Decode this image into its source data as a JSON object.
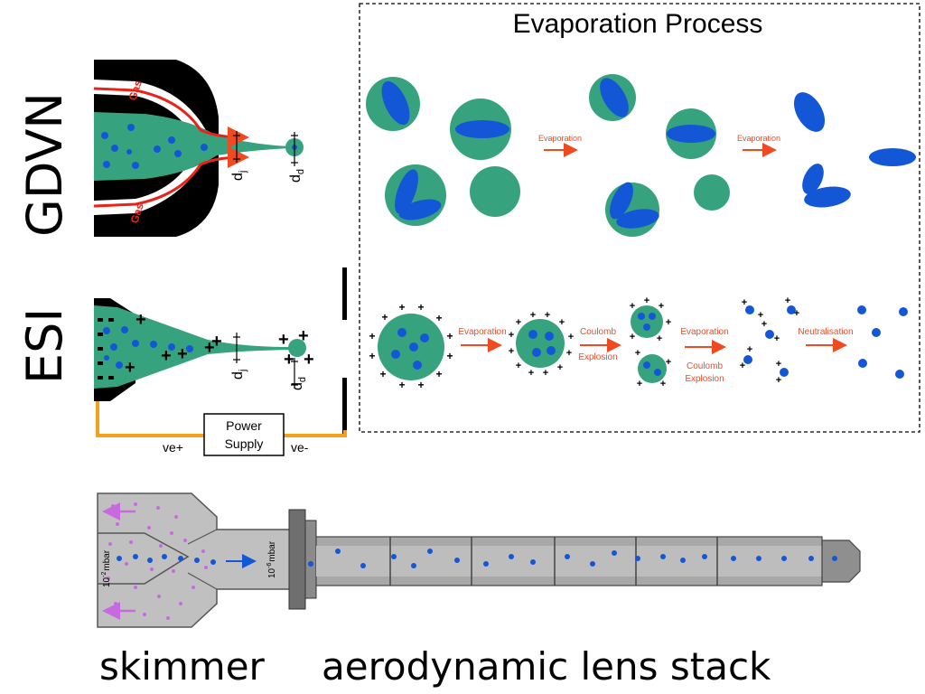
{
  "gdvn": {
    "title": "GDVN",
    "gas_top": "Gas",
    "gas_bottom": "Gas",
    "dj": "d",
    "dj_sub": "j",
    "dd": "d",
    "dd_sub": "d"
  },
  "esi": {
    "title": "ESI",
    "dj": "d",
    "dj_sub": "j",
    "dd": "d",
    "dd_sub": "d",
    "power_line1": "Power",
    "power_line2": "Supply",
    "ve_plus": "ve+",
    "ve_minus": "ve-"
  },
  "evaporation": {
    "title": "Evaporation Process",
    "arrow1": "Evaporation",
    "arrow2": "Evaporation",
    "esi_arrow1": "Evaporation",
    "esi_arrow2_l1": "Coulomb",
    "esi_arrow2_l2": "Explosion",
    "esi_arrow3_l1": "Evaporation",
    "esi_arrow3_l2": "Coulomb",
    "esi_arrow3_l3": "Explosion",
    "esi_arrow4": "Neutralisation"
  },
  "skimmer": {
    "pressure1_base": "10",
    "pressure1_exp": "-2",
    "pressure1_unit": "mbar",
    "pressure2_base": "10",
    "pressure2_exp": "-6",
    "pressure2_unit": "mbar"
  },
  "bottom_labels": {
    "left": "skimmer",
    "right": "aerodynamic lens stack"
  },
  "colors": {
    "liquid": "#36a37e",
    "particle": "#1357d6",
    "arrow": "#f04a22",
    "gas_line": "#e8231a",
    "wire": "#f3a21c",
    "nozzle": "#000000",
    "gas_dots": "#c86adf",
    "metal": "#a9a9a9"
  }
}
